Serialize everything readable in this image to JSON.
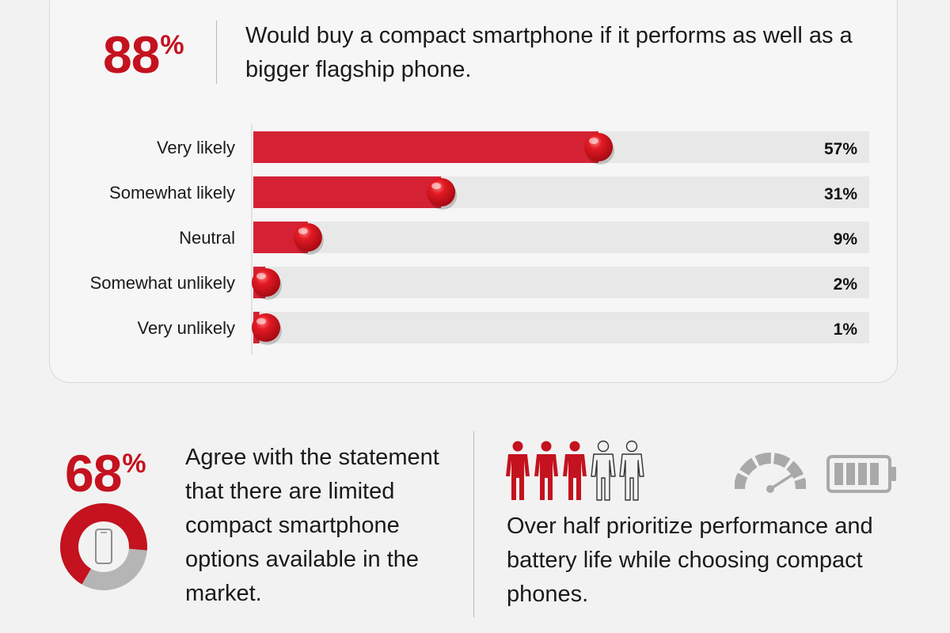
{
  "top": {
    "stat_number": "88",
    "stat_symbol": "%",
    "statement": "Would buy a compact smartphone if it performs as well as a bigger flagship phone."
  },
  "chart_data": {
    "type": "bar",
    "orientation": "horizontal",
    "categories": [
      "Very likely",
      "Somewhat likely",
      "Neutral",
      "Somewhat unlikely",
      "Very unlikely"
    ],
    "values": [
      57,
      31,
      9,
      2,
      1
    ],
    "value_labels": [
      "57%",
      "31%",
      "9%",
      "2%",
      "1%"
    ],
    "xlim": [
      0,
      100
    ],
    "grid": false,
    "colors": {
      "bar": "#d42234",
      "track": "#e8e8e8"
    }
  },
  "bottom_left": {
    "stat_number": "68",
    "stat_symbol": "%",
    "statement": "Agree with the statement that there are limited compact smartphone options available in the market.",
    "donut_value": 68,
    "donut_icon": "smartphone-icon"
  },
  "bottom_right": {
    "statement": "Over half prioritize performance and battery life while choosing compact phones.",
    "people_filled": 3,
    "people_total": 5,
    "icons": [
      "person-icon",
      "speedometer-icon",
      "battery-icon"
    ]
  },
  "colors": {
    "accent": "#c4121f",
    "muted": "#a9a9a9",
    "text": "#1a1a1a"
  }
}
